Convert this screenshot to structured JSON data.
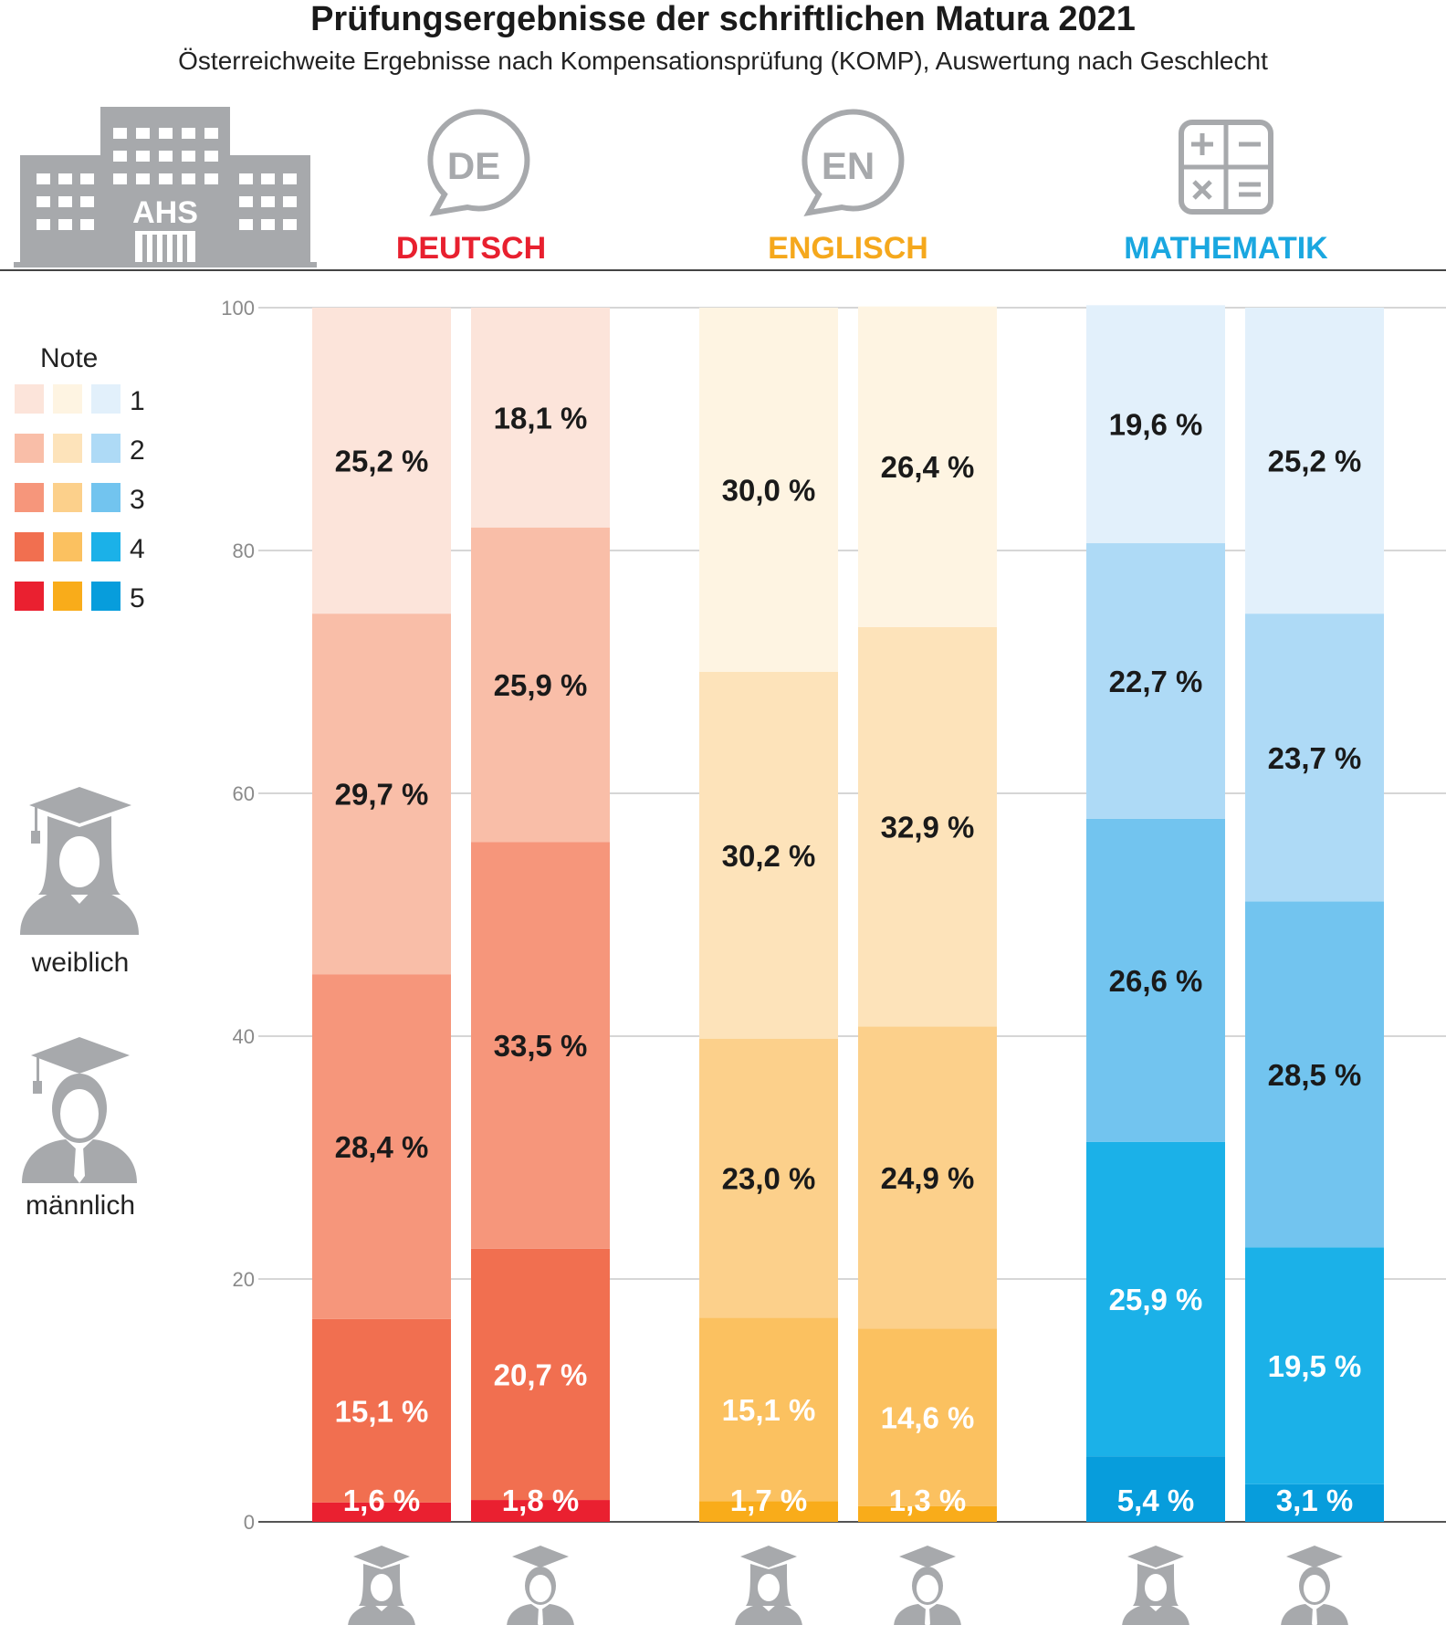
{
  "header": {
    "title": "Prüfungsergebnisse der schriftlichen Matura 2021",
    "subtitle": "Österreichweite Ergebnisse nach Kompensationsprüfung (KOMP), Auswertung nach Geschlecht",
    "school_label": "AHS"
  },
  "legend": {
    "title": "Note",
    "grades": [
      "1",
      "2",
      "3",
      "4",
      "5"
    ],
    "female_label": "weiblich",
    "male_label": "männlich"
  },
  "colors": {
    "deutsch": [
      "#fce4da",
      "#f9bea8",
      "#f6967b",
      "#f16f50",
      "#ea2030"
    ],
    "englisch": [
      "#fef4e2",
      "#fde3ba",
      "#fcd08b",
      "#fbc160",
      "#f9ac1a"
    ],
    "mathematik": [
      "#e2f0fb",
      "#aedaf6",
      "#72c4ef",
      "#1bb1e8",
      "#079ddc"
    ],
    "header_deutsch": "#e8202f",
    "header_englisch": "#f5a81c",
    "header_mathematik": "#1aa7e0",
    "icon_gray": "#a7a9ac"
  },
  "chart_data": {
    "type": "bar",
    "stacked": true,
    "ylim": [
      0,
      100
    ],
    "yticks": [
      "0",
      "20",
      "40",
      "60",
      "80",
      "100"
    ],
    "grid": true,
    "subjects": [
      {
        "name": "DEUTSCH",
        "badge": "DE",
        "icon": "speech-bubble-icon",
        "bars": [
          {
            "gender": "weiblich",
            "grades": [
              25.2,
              29.7,
              28.4,
              15.1,
              1.6
            ],
            "labels": [
              "25,2 %",
              "29,7 %",
              "28,4 %",
              "15,1 %",
              "1,6 %"
            ]
          },
          {
            "gender": "männlich",
            "grades": [
              18.1,
              25.9,
              33.5,
              20.7,
              1.8
            ],
            "labels": [
              "18,1 %",
              "25,9 %",
              "33,5 %",
              "20,7 %",
              "1,8 %"
            ]
          }
        ]
      },
      {
        "name": "ENGLISCH",
        "badge": "EN",
        "icon": "speech-bubble-icon",
        "bars": [
          {
            "gender": "weiblich",
            "grades": [
              30.0,
              30.2,
              23.0,
              15.1,
              1.7
            ],
            "labels": [
              "30,0 %",
              "30,2 %",
              "23,0 %",
              "15,1 %",
              "1,7 %"
            ]
          },
          {
            "gender": "männlich",
            "grades": [
              26.4,
              32.9,
              24.9,
              14.6,
              1.3
            ],
            "labels": [
              "26,4 %",
              "32,9 %",
              "24,9 %",
              "14,6 %",
              "1,3 %"
            ]
          }
        ]
      },
      {
        "name": "MATHEMATIK",
        "badge": "",
        "icon": "calculator-icon",
        "bars": [
          {
            "gender": "weiblich",
            "grades": [
              19.6,
              22.7,
              26.6,
              25.9,
              5.4
            ],
            "labels": [
              "19,6 %",
              "22,7 %",
              "26,6 %",
              "25,9 %",
              "5,4 %"
            ]
          },
          {
            "gender": "männlich",
            "grades": [
              25.2,
              23.7,
              28.5,
              19.5,
              3.1
            ],
            "labels": [
              "25,2 %",
              "23,7 %",
              "28,5 %",
              "19,5 %",
              "3,1 %"
            ]
          }
        ]
      }
    ]
  }
}
